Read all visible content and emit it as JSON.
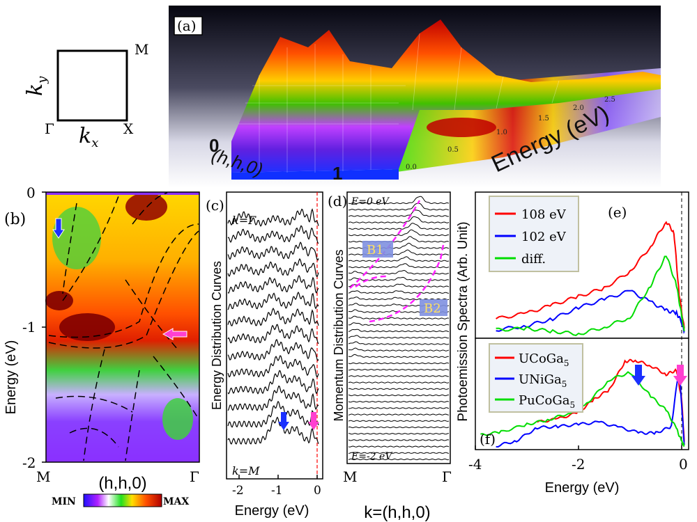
{
  "brillouin_zone": {
    "ky": "k",
    "ky_sub": "y",
    "kx": "k",
    "kx_sub": "x",
    "gamma": "Γ",
    "x_point": "X",
    "m_point": "M"
  },
  "panel_a": {
    "tag": "(a)",
    "axis_energy": "Energy (eV)",
    "axis_k": "(h,h,0)",
    "k_zero": "0",
    "k_one": "1",
    "energy_ticks": [
      "0.0",
      "0.5",
      "1.0",
      "1.5",
      "2.0",
      "2.5"
    ]
  },
  "panel_b": {
    "tag": "(b)",
    "ylabel": "Energy (eV)",
    "yticks": [
      "0",
      "-1",
      "-2"
    ],
    "x_left": "M",
    "x_right": "Γ",
    "xlabel": "(h,h,0)",
    "colorbar_min": "MIN",
    "colorbar_max": "MAX"
  },
  "panel_c": {
    "tag": "(c)",
    "ylabel": "Energy Distribution Curves",
    "top_label": "k=Γ",
    "bottom_label": "k=M",
    "xlabel": "Energy (eV)",
    "xticks": [
      "-2",
      "-1",
      "0"
    ],
    "num_curves": 14
  },
  "panel_d": {
    "tag": "(d)",
    "ylabel": "Momentum Distribution Curves",
    "top_label": "E=0 eV",
    "bottom_label": "E=-2 eV",
    "x_left": "M",
    "x_right": "Γ",
    "xlabel": "k=(h,h,0)",
    "band1": "B1",
    "band2": "B2",
    "num_curves": 41
  },
  "panel_e": {
    "tag": "(e)",
    "legend": [
      "108 eV",
      "102 eV",
      "diff."
    ]
  },
  "panel_f": {
    "tag": "(f)",
    "legend": [
      "UCoGa",
      "UNiGa",
      "PuCoGa"
    ],
    "legend_sub": "5"
  },
  "panel_ef_shared": {
    "ylabel": "Photoemission Spectra (Arb. Unit)",
    "xlabel": "Energy (eV)",
    "xticks": [
      "-4",
      "-2",
      "0"
    ]
  },
  "chart_data": [
    {
      "type": "line",
      "title": "(e)",
      "xlabel": "Energy (eV)",
      "ylabel": "Photoemission Spectra (Arb. Unit)",
      "xlim": [
        -4,
        0.1
      ],
      "series": [
        {
          "name": "108 eV",
          "color": "#ff0000",
          "x": [
            -3.6,
            -3.0,
            -2.5,
            -2.0,
            -1.5,
            -1.0,
            -0.6,
            -0.3,
            -0.15,
            -0.05,
            0.05
          ],
          "y": [
            0.12,
            0.16,
            0.22,
            0.28,
            0.34,
            0.46,
            0.64,
            0.82,
            0.74,
            0.3,
            0.05
          ]
        },
        {
          "name": "102 eV",
          "color": "#0000ff",
          "x": [
            -3.6,
            -3.0,
            -2.5,
            -2.0,
            -1.5,
            -1.0,
            -0.6,
            -0.3,
            -0.1,
            0.0,
            0.05
          ],
          "y": [
            0.04,
            0.07,
            0.12,
            0.2,
            0.26,
            0.32,
            0.24,
            0.18,
            0.16,
            0.1,
            0.03
          ]
        },
        {
          "name": "diff.",
          "color": "#00dd00",
          "x": [
            -3.6,
            -3.0,
            -2.5,
            -2.0,
            -1.5,
            -1.0,
            -0.6,
            -0.3,
            -0.1,
            0.0,
            0.05
          ],
          "y": [
            0.04,
            0.05,
            0.03,
            0.01,
            0.06,
            0.13,
            0.36,
            0.58,
            0.36,
            0.14,
            0.03
          ]
        }
      ]
    },
    {
      "type": "line",
      "title": "(f)",
      "xlabel": "Energy (eV)",
      "ylabel": "Photoemission Spectra (Arb. Unit)",
      "xlim": [
        -4,
        0.1
      ],
      "series": [
        {
          "name": "UCoGa5",
          "color": "#ff0000",
          "x": [
            -2.8,
            -2.4,
            -2.0,
            -1.7,
            -1.4,
            -1.1,
            -0.9,
            -0.6,
            -0.3,
            -0.1,
            0.0,
            0.05
          ],
          "y": [
            0.24,
            0.27,
            0.33,
            0.45,
            0.54,
            0.8,
            0.81,
            0.76,
            0.68,
            0.72,
            0.45,
            0.06
          ]
        },
        {
          "name": "UNiGa5",
          "color": "#0000ff",
          "x": [
            -3.6,
            -3.2,
            -2.8,
            -2.4,
            -2.0,
            -1.6,
            -1.2,
            -0.8,
            -0.5,
            -0.2,
            -0.05,
            0.0,
            0.05
          ],
          "y": [
            0.02,
            0.07,
            0.19,
            0.2,
            0.22,
            0.24,
            0.19,
            0.14,
            0.14,
            0.2,
            0.75,
            0.4,
            0.03
          ]
        },
        {
          "name": "PuCoGa5",
          "color": "#00dd00",
          "x": [
            -3.9,
            -3.5,
            -3.0,
            -2.6,
            -2.2,
            -1.8,
            -1.4,
            -1.0,
            -0.6,
            -0.3,
            -0.1,
            0.0,
            0.05
          ],
          "y": [
            0.12,
            0.15,
            0.22,
            0.26,
            0.32,
            0.43,
            0.63,
            0.7,
            0.48,
            0.35,
            0.18,
            0.06,
            0.02
          ]
        }
      ]
    }
  ]
}
